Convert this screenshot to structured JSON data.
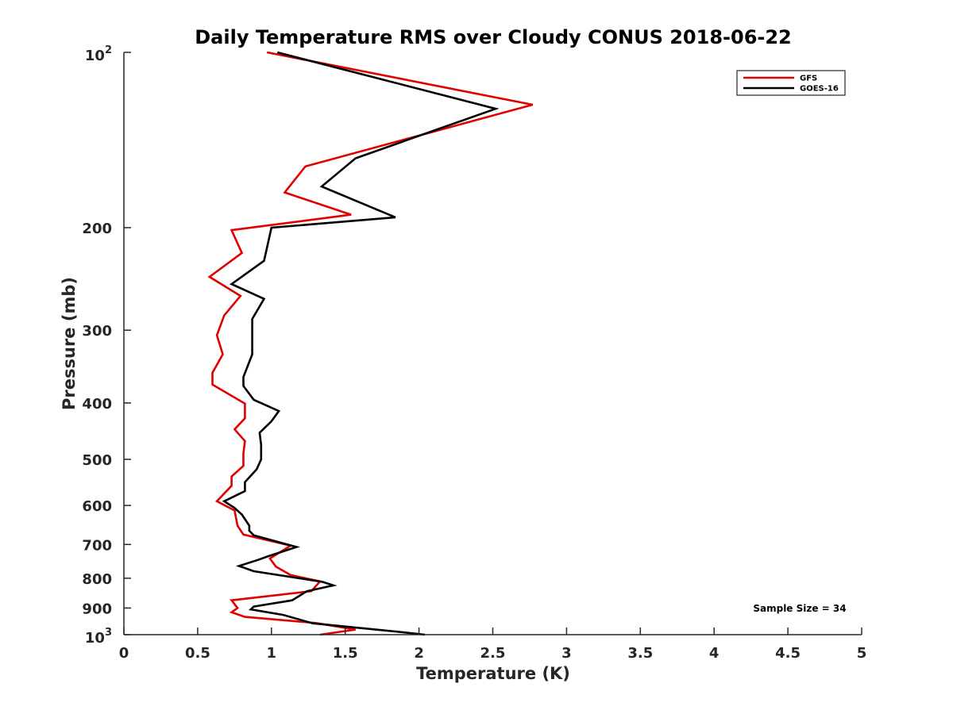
{
  "chart_data": {
    "type": "line",
    "title": "Daily Temperature RMS over Cloudy CONUS 2018-06-22",
    "xlabel": "Temperature (K)",
    "ylabel": "Pressure (mb)",
    "xlim": [
      0,
      5
    ],
    "ylim": [
      100,
      1000
    ],
    "yscale": "log",
    "y_reversed": true,
    "grid": false,
    "legend_position": "top-right",
    "x_ticks": [
      "0",
      "0.5",
      "1",
      "1.5",
      "2",
      "2.5",
      "3",
      "3.5",
      "4",
      "4.5",
      "5"
    ],
    "x_tick_values": [
      0,
      0.5,
      1,
      1.5,
      2,
      2.5,
      3,
      3.5,
      4,
      4.5,
      5
    ],
    "y_ticks": [
      {
        "value": 100,
        "base": "10",
        "exp": "2"
      },
      {
        "value": 200,
        "label": "200"
      },
      {
        "value": 300,
        "label": "300"
      },
      {
        "value": 400,
        "label": "400"
      },
      {
        "value": 500,
        "label": "500"
      },
      {
        "value": 600,
        "label": "600"
      },
      {
        "value": 700,
        "label": "700"
      },
      {
        "value": 800,
        "label": "800"
      },
      {
        "value": 900,
        "label": "900"
      },
      {
        "value": 1000,
        "base": "10",
        "exp": "3"
      }
    ],
    "annotation": "Sample Size = 34",
    "series": [
      {
        "name": "GFS",
        "color": "#e00000",
        "points": [
          [
            0.97,
            100
          ],
          [
            2.77,
            123
          ],
          [
            1.23,
            157
          ],
          [
            1.09,
            174
          ],
          [
            1.54,
            190
          ],
          [
            0.73,
            202
          ],
          [
            0.8,
            221
          ],
          [
            0.58,
            243
          ],
          [
            0.79,
            262
          ],
          [
            0.68,
            283
          ],
          [
            0.63,
            306
          ],
          [
            0.67,
            330
          ],
          [
            0.6,
            355
          ],
          [
            0.6,
            372
          ],
          [
            0.82,
            401
          ],
          [
            0.82,
            425
          ],
          [
            0.75,
            444
          ],
          [
            0.82,
            465
          ],
          [
            0.81,
            488
          ],
          [
            0.81,
            513
          ],
          [
            0.73,
            535
          ],
          [
            0.73,
            555
          ],
          [
            0.63,
            590
          ],
          [
            0.75,
            612
          ],
          [
            0.77,
            650
          ],
          [
            0.81,
            673
          ],
          [
            1.13,
            703
          ],
          [
            0.99,
            740
          ],
          [
            1.03,
            764
          ],
          [
            1.13,
            790
          ],
          [
            1.33,
            810
          ],
          [
            1.27,
            842
          ],
          [
            0.73,
            873
          ],
          [
            0.77,
            900
          ],
          [
            0.73,
            915
          ],
          [
            0.82,
            932
          ],
          [
            1.3,
            955
          ],
          [
            1.57,
            980
          ],
          [
            1.33,
            1000
          ]
        ]
      },
      {
        "name": "GOES-16",
        "color": "#000000",
        "points": [
          [
            1.04,
            100
          ],
          [
            2.52,
            125
          ],
          [
            1.57,
            152
          ],
          [
            1.34,
            170
          ],
          [
            1.84,
            192
          ],
          [
            1.0,
            200
          ],
          [
            0.95,
            228
          ],
          [
            0.73,
            250
          ],
          [
            0.95,
            265
          ],
          [
            0.87,
            287
          ],
          [
            0.87,
            330
          ],
          [
            0.81,
            361
          ],
          [
            0.81,
            374
          ],
          [
            0.88,
            395
          ],
          [
            1.05,
            413
          ],
          [
            1.0,
            430
          ],
          [
            0.92,
            450
          ],
          [
            0.93,
            472
          ],
          [
            0.93,
            500
          ],
          [
            0.9,
            520
          ],
          [
            0.82,
            547
          ],
          [
            0.82,
            567
          ],
          [
            0.68,
            590
          ],
          [
            0.75,
            606
          ],
          [
            0.8,
            622
          ],
          [
            0.85,
            650
          ],
          [
            0.85,
            663
          ],
          [
            0.88,
            675
          ],
          [
            1.17,
            707
          ],
          [
            0.98,
            733
          ],
          [
            0.91,
            744
          ],
          [
            0.78,
            762
          ],
          [
            0.88,
            778
          ],
          [
            1.35,
            812
          ],
          [
            1.42,
            823
          ],
          [
            1.24,
            842
          ],
          [
            1.14,
            873
          ],
          [
            0.88,
            895
          ],
          [
            0.86,
            905
          ],
          [
            1.08,
            925
          ],
          [
            1.28,
            956
          ],
          [
            1.85,
            988
          ],
          [
            2.04,
            1000
          ]
        ]
      }
    ]
  }
}
